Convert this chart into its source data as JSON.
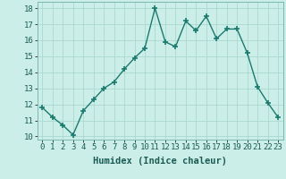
{
  "x": [
    0,
    1,
    2,
    3,
    4,
    5,
    6,
    7,
    8,
    9,
    10,
    11,
    12,
    13,
    14,
    15,
    16,
    17,
    18,
    19,
    20,
    21,
    22,
    23
  ],
  "y": [
    11.8,
    11.2,
    10.7,
    10.1,
    11.6,
    12.3,
    13.0,
    13.4,
    14.2,
    14.9,
    15.5,
    18.0,
    15.9,
    15.6,
    17.2,
    16.6,
    17.5,
    16.1,
    16.7,
    16.7,
    15.2,
    13.1,
    12.1,
    11.2
  ],
  "line_color": "#1a7a6e",
  "marker": "+",
  "marker_size": 4,
  "marker_lw": 1.2,
  "bg_color": "#cceee8",
  "grid_color": "#aad8d0",
  "xlabel": "Humidex (Indice chaleur)",
  "ylim": [
    9.8,
    18.4
  ],
  "xlim": [
    -0.5,
    23.5
  ],
  "yticks": [
    10,
    11,
    12,
    13,
    14,
    15,
    16,
    17,
    18
  ],
  "xticks": [
    0,
    1,
    2,
    3,
    4,
    5,
    6,
    7,
    8,
    9,
    10,
    11,
    12,
    13,
    14,
    15,
    16,
    17,
    18,
    19,
    20,
    21,
    22,
    23
  ],
  "xlabel_fontsize": 7.5,
  "tick_fontsize": 6.5,
  "line_width": 1.0
}
